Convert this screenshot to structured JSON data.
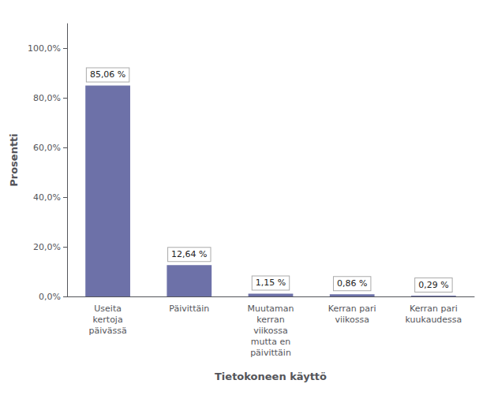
{
  "chart_data": {
    "type": "bar",
    "xlabel": "Tietokoneen käyttö",
    "ylabel": "Prosentti",
    "categories": [
      "Useita\nkertoja\npäivässä",
      "Päivittäin",
      "Muutaman\nkerran\nviikossa\nmutta en\npäivittäin",
      "Kerran pari\nviikossa",
      "Kerran pari\nkuukaudessa"
    ],
    "values": [
      85.06,
      12.64,
      1.15,
      0.86,
      0.29
    ],
    "value_labels": [
      "85,06 %",
      "12,64 %",
      "1,15 %",
      "0,86 %",
      "0,29 %"
    ],
    "data_labels": true,
    "color": "#6d71a8",
    "ylim": [
      0,
      110
    ],
    "yticks": [
      {
        "value": 0,
        "label": "0,0%"
      },
      {
        "value": 20,
        "label": "20,0%"
      },
      {
        "value": 40,
        "label": "40,0%"
      },
      {
        "value": 60,
        "label": "60,0%"
      },
      {
        "value": 80,
        "label": "80,0%"
      },
      {
        "value": 100,
        "label": "100,0%"
      }
    ],
    "grid": false
  }
}
